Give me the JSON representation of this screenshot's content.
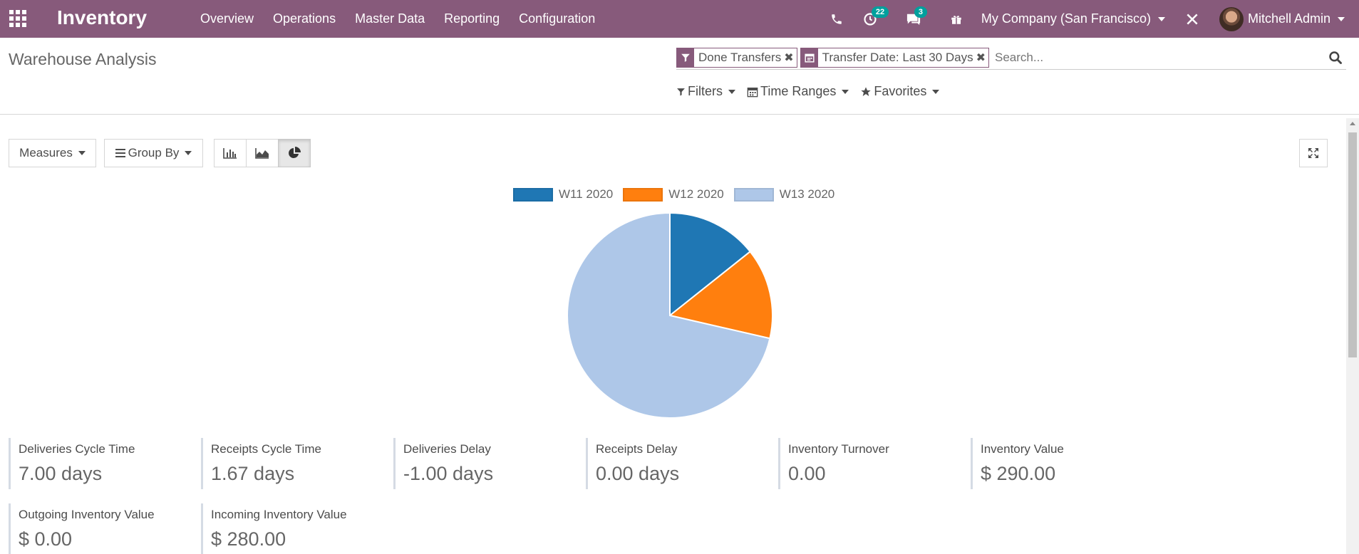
{
  "navbar": {
    "brand": "Inventory",
    "menu": [
      "Overview",
      "Operations",
      "Master Data",
      "Reporting",
      "Configuration"
    ],
    "activities_count": "22",
    "messages_count": "3",
    "company": "My Company (San Francisco)",
    "user": "Mitchell Admin",
    "color": "#875a7b",
    "badge_color": "#00a09d"
  },
  "control_panel": {
    "title": "Warehouse Analysis",
    "facets": [
      {
        "label": "Done Transfers",
        "icon": "filter-icon"
      },
      {
        "label": "Transfer Date: Last 30 Days",
        "icon": "calendar-icon"
      }
    ],
    "search_placeholder": "Search...",
    "filters_label": "Filters",
    "time_ranges_label": "Time Ranges",
    "favorites_label": "Favorites"
  },
  "graph_toolbar": {
    "measures_label": "Measures",
    "group_by_label": "Group By",
    "views": [
      "bar-chart-icon",
      "line-chart-icon",
      "pie-chart-icon"
    ],
    "active_view": "pie-chart-icon"
  },
  "chart_data": {
    "type": "pie",
    "categories": [
      "W11 2020",
      "W12 2020",
      "W13 2020"
    ],
    "values": [
      14.3,
      14.3,
      71.4
    ],
    "colors": [
      "#1f77b4",
      "#ff7f0e",
      "#aec7e8"
    ],
    "legend": "top"
  },
  "kpis": [
    {
      "label": "Deliveries Cycle Time",
      "value": "7.00 days"
    },
    {
      "label": "Receipts Cycle Time",
      "value": "1.67 days"
    },
    {
      "label": "Deliveries Delay",
      "value": "-1.00 days"
    },
    {
      "label": "Receipts Delay",
      "value": "0.00 days"
    },
    {
      "label": "Inventory Turnover",
      "value": "0.00"
    },
    {
      "label": "Inventory Value",
      "value": "$ 290.00"
    },
    {
      "label": "Outgoing Inventory Value",
      "value": "$ 0.00"
    },
    {
      "label": "Incoming Inventory Value",
      "value": "$ 280.00"
    }
  ]
}
